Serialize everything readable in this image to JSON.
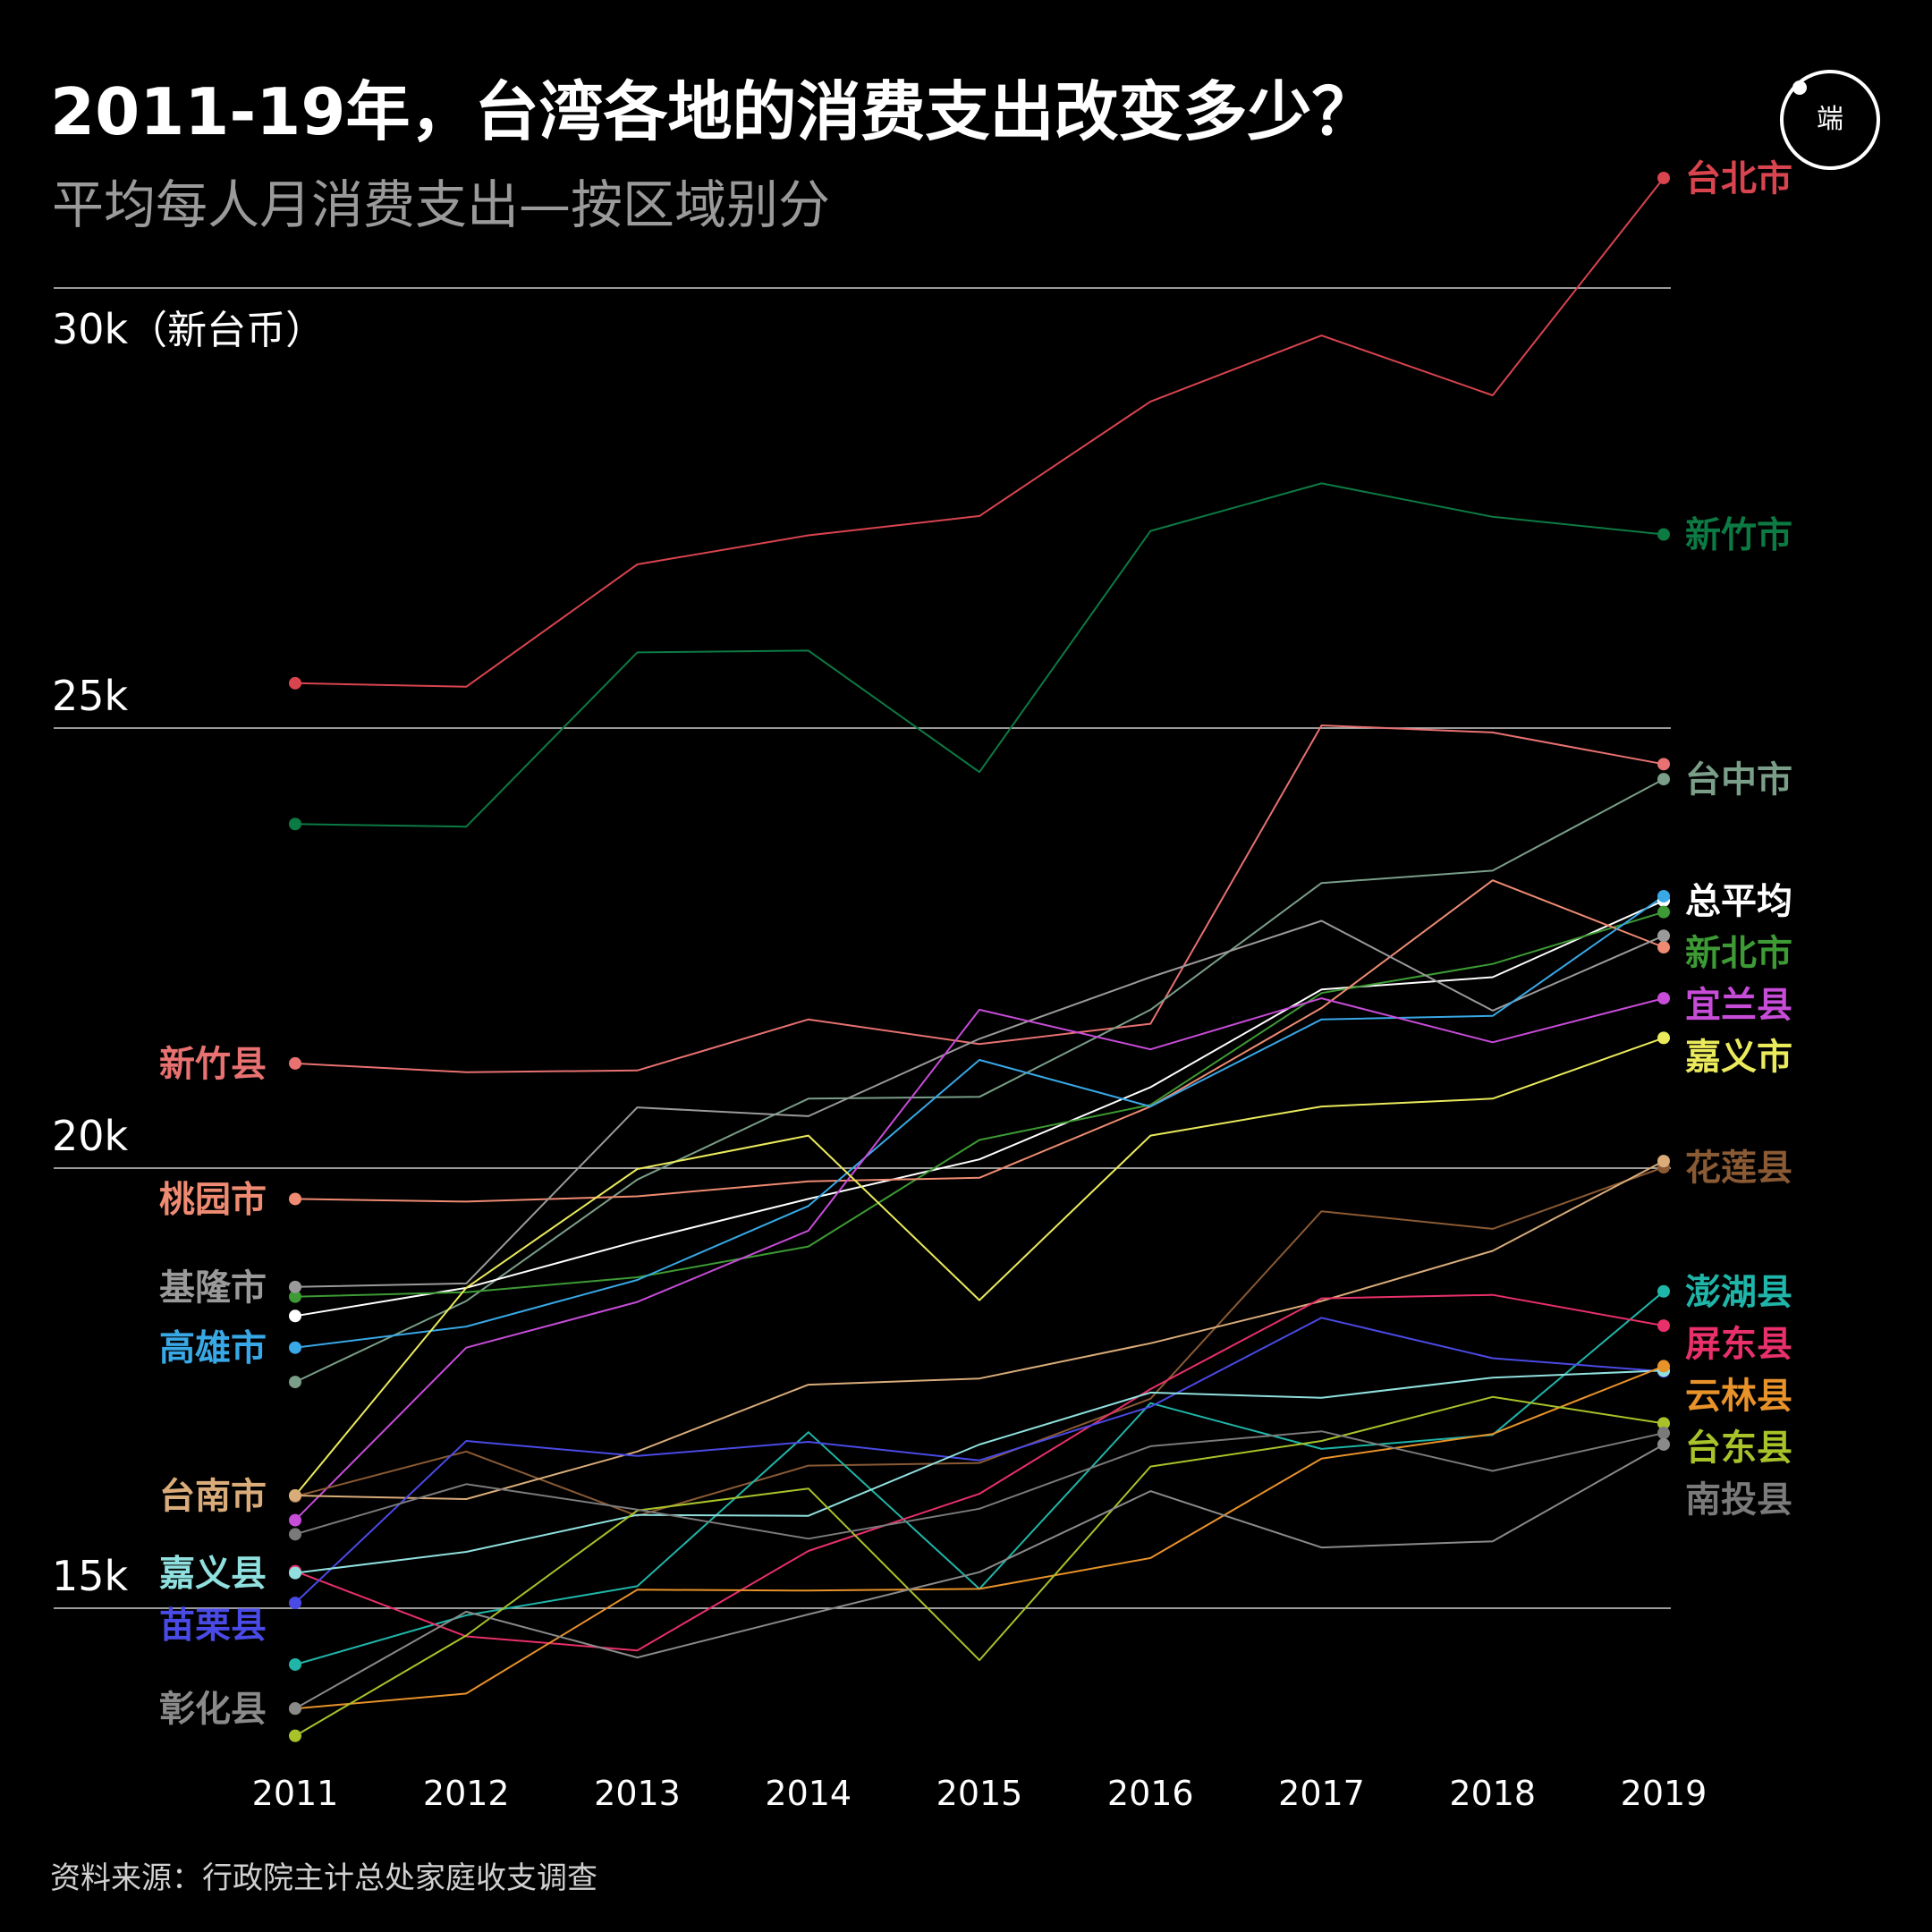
{
  "title": "2011-19年，台湾各地的消费支出改变多少？",
  "subtitle": "平均每人月消费支出—按区域别分",
  "source": "资料来源：行政院主计总处家庭收支调查",
  "logo_text": "端",
  "unit_label": "（新台币）",
  "chart_data": {
    "type": "line",
    "x": [
      2011,
      2012,
      2013,
      2014,
      2015,
      2016,
      2017,
      2018,
      2019
    ],
    "y_ticks": [
      {
        "value": 15000,
        "label": "15k"
      },
      {
        "value": 20000,
        "label": "20k"
      },
      {
        "value": 25000,
        "label": "25k"
      },
      {
        "value": 30000,
        "label": "30k"
      }
    ],
    "ylim": [
      12000,
      31500
    ],
    "grid": true,
    "series": [
      {
        "name": "台北市",
        "color": "#d9444f",
        "label_side": "right",
        "values": [
          25510,
          25470,
          26860,
          27190,
          27410,
          28710,
          29460,
          28780,
          31250
        ]
      },
      {
        "name": "新竹市",
        "color": "#0c7a43",
        "label_side": "right",
        "values": [
          23910,
          23880,
          25860,
          25880,
          24500,
          27240,
          27780,
          27400,
          27200
        ]
      },
      {
        "name": "新竹县",
        "color": "#e87171",
        "label_side": "left",
        "values": [
          21190,
          21090,
          21110,
          21690,
          21410,
          21640,
          25030,
          24950,
          24590
        ]
      },
      {
        "name": "台中市",
        "color": "#7a9e88",
        "label_side": "right",
        "values": [
          17570,
          18490,
          19870,
          20790,
          20810,
          21800,
          23240,
          23380,
          24420
        ]
      },
      {
        "name": "总平均",
        "color": "#ffffff",
        "label_side": "right",
        "values": [
          18320,
          18640,
          19170,
          19650,
          20100,
          20920,
          22030,
          22170,
          23040
        ]
      },
      {
        "name": "新北市",
        "color": "#3d9a34",
        "label_side": "right",
        "values": [
          18540,
          18590,
          18760,
          19110,
          20320,
          20720,
          21990,
          22320,
          22910
        ]
      },
      {
        "name": "桃园市",
        "color": "#ef8b72",
        "label_side": "left",
        "values": [
          19650,
          19620,
          19680,
          19850,
          19890,
          20700,
          21820,
          23270,
          22510
        ]
      },
      {
        "name": "基隆市",
        "color": "#9a9a9a",
        "label_side": "left",
        "values": [
          18650,
          18690,
          20690,
          20590,
          21470,
          22170,
          22810,
          21790,
          22640
        ]
      },
      {
        "name": "高雄市",
        "color": "#38a8e6",
        "label_side": "left",
        "values": [
          17960,
          18200,
          18730,
          19570,
          21230,
          20700,
          21690,
          21730,
          23090
        ]
      },
      {
        "name": "宜兰县",
        "color": "#c74cd8",
        "label_side": "right",
        "values": [
          16000,
          17960,
          18480,
          19290,
          21800,
          21350,
          21930,
          21430,
          21930
        ]
      },
      {
        "name": "嘉义市",
        "color": "#eaea5c",
        "label_side": "right",
        "values": [
          16280,
          18640,
          19990,
          20370,
          18500,
          20370,
          20700,
          20790,
          21480
        ]
      },
      {
        "name": "花莲县",
        "color": "#8a5a34",
        "label_side": "right",
        "values": [
          16270,
          16780,
          16050,
          16620,
          16650,
          17380,
          19510,
          19310,
          20010
        ]
      },
      {
        "name": "台南市",
        "color": "#d9ac7a",
        "label_side": "left",
        "values": [
          16280,
          16240,
          16780,
          17540,
          17610,
          18010,
          18490,
          19060,
          20080
        ]
      },
      {
        "name": "澎湖县",
        "color": "#1fb5a8",
        "label_side": "right",
        "values": [
          14360,
          14920,
          15250,
          17000,
          15220,
          17330,
          16810,
          16970,
          18600
        ]
      },
      {
        "name": "屏东县",
        "color": "#e8306a",
        "label_side": "right",
        "values": [
          15420,
          14680,
          14520,
          15650,
          16300,
          17490,
          18520,
          18560,
          18210
        ]
      },
      {
        "name": "苗栗县",
        "color": "#4a4ae6",
        "label_side": "left",
        "values": [
          15060,
          16900,
          16730,
          16890,
          16680,
          17290,
          18300,
          17840,
          17690
        ]
      },
      {
        "name": "嘉义县",
        "color": "#8fe0de",
        "label_side": "left",
        "values": [
          15400,
          15640,
          16060,
          16050,
          16860,
          17450,
          17390,
          17620,
          17700
        ]
      },
      {
        "name": "云林县",
        "color": "#e8922a",
        "label_side": "right",
        "values": [
          13860,
          14030,
          15210,
          15200,
          15220,
          15570,
          16700,
          16980,
          17750
        ]
      },
      {
        "name": "台东县",
        "color": "#a8c22a",
        "label_side": "right",
        "values": [
          13550,
          14690,
          16110,
          16360,
          14410,
          16610,
          16900,
          17400,
          17100
        ]
      },
      {
        "name": "南投县",
        "color": "#7a7a7a",
        "label_side": "right",
        "values": [
          15840,
          16410,
          16120,
          15790,
          16130,
          16840,
          17010,
          16560,
          16990
        ]
      },
      {
        "name": "彰化县",
        "color": "#8a8a8a",
        "label_side": "left",
        "values": [
          13860,
          14960,
          14440,
          14930,
          15410,
          16330,
          15690,
          15760,
          16860
        ]
      }
    ]
  }
}
